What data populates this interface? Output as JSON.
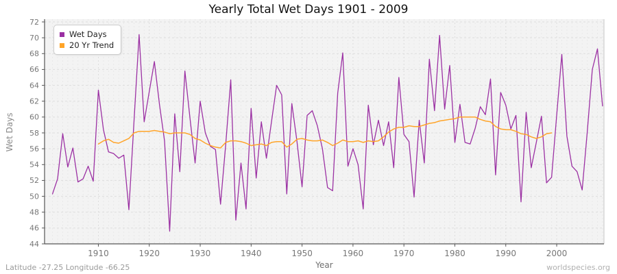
{
  "title": "Yearly Total Wet Days 1901 - 2009",
  "axes": {
    "x_label": "Year",
    "y_label": "Wet Days"
  },
  "footer": {
    "left": "Latitude -27.25 Longitude -66.25",
    "right": "worldspecies.org"
  },
  "colors": {
    "wet_days": "#9B30A3",
    "trend": "#FFA428",
    "plot_bg": "#f3f3f3",
    "grid_major": "#dddddd",
    "grid_minor": "#e8e8e8",
    "spine": "#555555",
    "tick_label": "#777777"
  },
  "legend": {
    "position": "top-left",
    "items": [
      {
        "label": "Wet Days",
        "color": "#9B30A3"
      },
      {
        "label": "20 Yr Trend",
        "color": "#FFA428"
      }
    ]
  },
  "chart_data": {
    "type": "line",
    "title": "Yearly Total Wet Days 1901 - 2009",
    "xlabel": "Year",
    "ylabel": "Wet Days",
    "xlim": [
      1901,
      2009
    ],
    "ylim": [
      44,
      72
    ],
    "yticks": [
      44,
      46,
      48,
      50,
      52,
      54,
      56,
      58,
      60,
      62,
      64,
      66,
      68,
      70,
      72
    ],
    "xticks": [
      1910,
      1920,
      1930,
      1940,
      1950,
      1960,
      1970,
      1980,
      1990,
      2000
    ],
    "grid": true,
    "legend_position": "top-left",
    "series": [
      {
        "name": "Wet Days",
        "color": "#9B30A3",
        "x_start": 1901,
        "values": [
          50.3,
          52.2,
          57.9,
          53.7,
          56.1,
          51.8,
          52.2,
          53.8,
          51.9,
          63.4,
          58.4,
          55.6,
          55.4,
          54.8,
          55.2,
          48.3,
          59.5,
          70.4,
          59.4,
          63.2,
          67.0,
          61.6,
          57.0,
          45.6,
          60.4,
          53.1,
          65.8,
          59.8,
          54.2,
          62.0,
          58.0,
          56.3,
          55.9,
          49.0,
          56.5,
          64.7,
          47.0,
          54.2,
          48.4,
          61.1,
          52.3,
          59.4,
          54.8,
          59.4,
          64.0,
          62.8,
          50.3,
          61.7,
          56.9,
          51.2,
          60.2,
          60.8,
          58.9,
          56.0,
          51.1,
          50.7,
          63.0,
          68.1,
          53.8,
          56.0,
          54.0,
          48.4,
          61.5,
          56.5,
          59.6,
          56.4,
          59.4,
          53.6,
          65.0,
          57.8,
          56.9,
          49.9,
          59.6,
          54.2,
          67.3,
          60.8,
          70.3,
          61.0,
          66.5,
          56.8,
          61.6,
          56.8,
          56.6,
          58.6,
          61.3,
          60.3,
          64.8,
          52.7,
          63.1,
          61.5,
          58.5,
          60.2,
          49.3,
          60.6,
          53.6,
          56.8,
          60.1,
          51.7,
          52.4,
          60.2,
          67.9,
          57.6,
          53.8,
          53.1,
          50.8,
          58.1,
          66.0,
          68.6,
          61.4
        ]
      },
      {
        "name": "20 Yr Trend",
        "color": "#FFA428",
        "x_start": 1910,
        "values": [
          56.6,
          57.0,
          57.2,
          56.8,
          56.7,
          57.0,
          57.3,
          58.0,
          58.2,
          58.2,
          58.2,
          58.3,
          58.2,
          58.1,
          57.9,
          58.0,
          58.0,
          58.0,
          57.8,
          57.3,
          57.1,
          56.7,
          56.4,
          56.2,
          56.1,
          56.8,
          57.0,
          57.0,
          56.9,
          56.7,
          56.4,
          56.5,
          56.6,
          56.4,
          56.8,
          56.9,
          56.9,
          56.2,
          56.6,
          57.2,
          57.3,
          57.1,
          57.0,
          57.0,
          57.1,
          56.8,
          56.4,
          56.7,
          57.1,
          56.9,
          56.9,
          57.0,
          56.8,
          57.0,
          56.9,
          57.0,
          57.5,
          58.1,
          58.5,
          58.7,
          58.7,
          58.9,
          58.8,
          58.8,
          59.0,
          59.2,
          59.3,
          59.5,
          59.6,
          59.7,
          59.8,
          60.0,
          60.0,
          60.0,
          60.0,
          59.7,
          59.5,
          59.4,
          58.8,
          58.5,
          58.4,
          58.4,
          58.2,
          57.9,
          57.8,
          57.5,
          57.3,
          57.5,
          57.9,
          58.0
        ]
      }
    ]
  }
}
